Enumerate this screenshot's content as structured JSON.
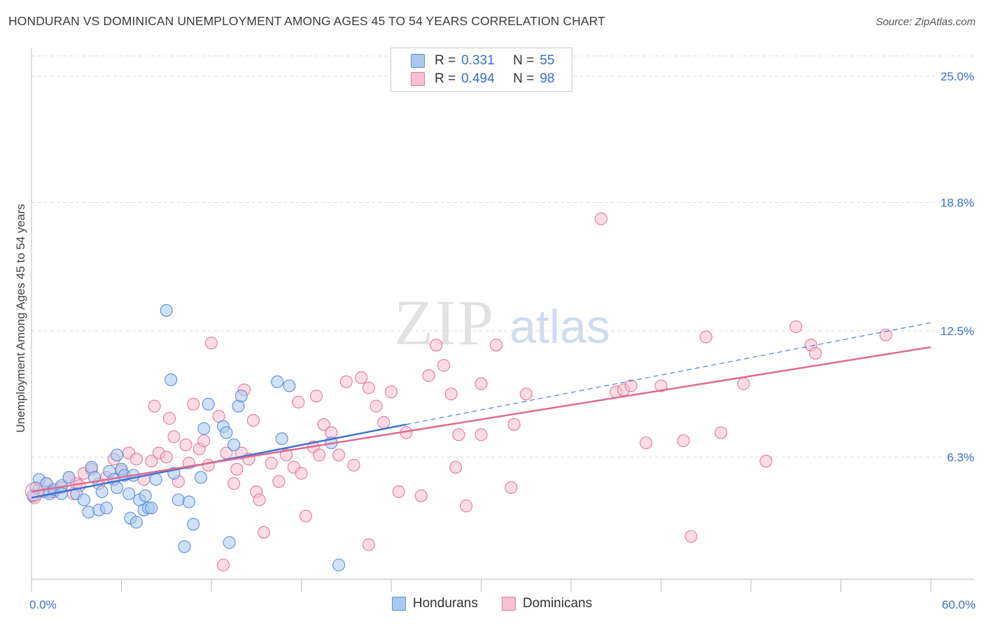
{
  "title": "HONDURAN VS DOMINICAN UNEMPLOYMENT AMONG AGES 45 TO 54 YEARS CORRELATION CHART",
  "source": "Source: ZipAtlas.com",
  "watermark": {
    "zip": "ZIP",
    "atlas": "atlas"
  },
  "legend": {
    "rows": [
      {
        "r_label": "R =",
        "r_value": "0.331",
        "n_label": "N =",
        "n_value": "55",
        "fill": "#a8c8f0",
        "stroke": "#5b8fd6"
      },
      {
        "r_label": "R =",
        "r_value": "0.494",
        "n_label": "N =",
        "n_value": "98",
        "fill": "#f8c0d0",
        "stroke": "#e07a9b"
      }
    ]
  },
  "bottom_legend": [
    {
      "label": "Hondurans",
      "fill": "#a8c8f0",
      "stroke": "#5b8fd6"
    },
    {
      "label": "Dominicans",
      "fill": "#f8c0d0",
      "stroke": "#e07a9b"
    }
  ],
  "chart_data": {
    "type": "scatter",
    "xlabel": "",
    "ylabel": "Unemployment Among Ages 45 to 54 years",
    "xlim": [
      0,
      60
    ],
    "ylim": [
      0.3,
      26.0
    ],
    "x_tick_labels": [
      {
        "value": 0,
        "label": "0.0%"
      },
      {
        "value": 60,
        "label": "60.0%"
      }
    ],
    "y_ticks": [
      {
        "value": 6.3,
        "label": "6.3%"
      },
      {
        "value": 12.5,
        "label": "12.5%"
      },
      {
        "value": 18.8,
        "label": "18.8%"
      },
      {
        "value": 25.0,
        "label": "25.0%"
      }
    ],
    "grid": true,
    "legend_position": "top-center",
    "colors": {
      "hondurans": "#5b8fd6",
      "hondurans_fill": "#a8c8f0",
      "dominicans": "#e07a9b",
      "dominicans_fill": "#f8c0d0",
      "blue_line": "#3a72d0",
      "pink_line": "#e06a92"
    },
    "series": [
      {
        "name": "Hondurans",
        "points": [
          [
            0.3,
            4.8
          ],
          [
            0.5,
            5.2
          ],
          [
            0.8,
            4.6
          ],
          [
            1.0,
            5.0
          ],
          [
            1.2,
            4.5
          ],
          [
            1.5,
            4.7
          ],
          [
            2.0,
            4.9
          ],
          [
            2.0,
            4.5
          ],
          [
            2.5,
            5.3
          ],
          [
            3.0,
            4.5
          ],
          [
            3.5,
            4.2
          ],
          [
            3.8,
            3.6
          ],
          [
            4.0,
            5.8
          ],
          [
            4.2,
            5.3
          ],
          [
            4.5,
            3.7
          ],
          [
            4.7,
            4.6
          ],
          [
            5.0,
            3.8
          ],
          [
            5.2,
            5.6
          ],
          [
            5.5,
            5.2
          ],
          [
            5.7,
            4.8
          ],
          [
            6.0,
            5.7
          ],
          [
            5.7,
            6.4
          ],
          [
            6.2,
            5.4
          ],
          [
            6.5,
            4.5
          ],
          [
            6.6,
            3.3
          ],
          [
            6.8,
            5.4
          ],
          [
            7.0,
            3.1
          ],
          [
            7.2,
            4.2
          ],
          [
            7.5,
            3.7
          ],
          [
            7.6,
            4.4
          ],
          [
            7.8,
            3.8
          ],
          [
            8.0,
            3.8
          ],
          [
            8.3,
            5.2
          ],
          [
            9.0,
            13.5
          ],
          [
            9.3,
            10.1
          ],
          [
            9.5,
            5.5
          ],
          [
            9.8,
            4.2
          ],
          [
            10.2,
            1.9
          ],
          [
            10.5,
            4.1
          ],
          [
            10.8,
            3.0
          ],
          [
            11.3,
            5.3
          ],
          [
            11.5,
            7.7
          ],
          [
            11.8,
            8.9
          ],
          [
            12.8,
            7.8
          ],
          [
            13.0,
            7.5
          ],
          [
            13.2,
            2.1
          ],
          [
            13.5,
            6.9
          ],
          [
            13.8,
            8.8
          ],
          [
            14.0,
            9.3
          ],
          [
            16.4,
            10.0
          ],
          [
            16.7,
            7.2
          ],
          [
            17.2,
            9.8
          ],
          [
            20.0,
            7.0
          ],
          [
            20.5,
            1.0
          ],
          [
            0.1,
            4.4
          ]
        ]
      },
      {
        "name": "Dominicans",
        "points": [
          [
            0.2,
            4.3
          ],
          [
            0.5,
            4.7
          ],
          [
            1.0,
            5.0
          ],
          [
            1.5,
            4.6
          ],
          [
            2.0,
            4.8
          ],
          [
            2.5,
            5.3
          ],
          [
            3.0,
            5.0
          ],
          [
            3.5,
            5.5
          ],
          [
            4.0,
            5.7
          ],
          [
            4.5,
            5.0
          ],
          [
            5.0,
            5.3
          ],
          [
            5.5,
            6.2
          ],
          [
            6.0,
            5.6
          ],
          [
            6.5,
            6.5
          ],
          [
            7.0,
            6.2
          ],
          [
            7.5,
            5.2
          ],
          [
            8.0,
            6.1
          ],
          [
            8.2,
            8.8
          ],
          [
            8.5,
            6.5
          ],
          [
            9.0,
            6.3
          ],
          [
            9.2,
            8.2
          ],
          [
            9.5,
            7.3
          ],
          [
            9.8,
            5.1
          ],
          [
            10.3,
            6.9
          ],
          [
            10.5,
            6.0
          ],
          [
            10.8,
            8.9
          ],
          [
            11.2,
            6.7
          ],
          [
            11.5,
            7.1
          ],
          [
            11.8,
            5.9
          ],
          [
            12.0,
            11.9
          ],
          [
            12.5,
            8.3
          ],
          [
            12.8,
            1.0
          ],
          [
            13.0,
            6.5
          ],
          [
            13.5,
            5.0
          ],
          [
            13.7,
            5.7
          ],
          [
            14.0,
            6.5
          ],
          [
            14.2,
            9.6
          ],
          [
            14.5,
            6.2
          ],
          [
            15.0,
            4.6
          ],
          [
            15.2,
            4.2
          ],
          [
            15.5,
            2.6
          ],
          [
            16.0,
            6.0
          ],
          [
            16.5,
            5.1
          ],
          [
            17.0,
            6.4
          ],
          [
            17.5,
            5.8
          ],
          [
            17.8,
            9.0
          ],
          [
            18.0,
            5.5
          ],
          [
            18.3,
            3.4
          ],
          [
            18.8,
            6.8
          ],
          [
            19.0,
            9.3
          ],
          [
            19.5,
            7.9
          ],
          [
            20.0,
            7.5
          ],
          [
            20.5,
            6.4
          ],
          [
            21.0,
            10.0
          ],
          [
            21.5,
            5.9
          ],
          [
            22.0,
            10.2
          ],
          [
            22.5,
            2.0
          ],
          [
            23.0,
            8.8
          ],
          [
            23.5,
            8.0
          ],
          [
            24.0,
            9.5
          ],
          [
            24.5,
            4.6
          ],
          [
            25.0,
            7.5
          ],
          [
            26.0,
            4.4
          ],
          [
            26.5,
            10.3
          ],
          [
            27.0,
            11.8
          ],
          [
            27.5,
            10.8
          ],
          [
            28.0,
            9.4
          ],
          [
            28.3,
            5.8
          ],
          [
            28.5,
            7.4
          ],
          [
            29.0,
            3.9
          ],
          [
            30.0,
            9.9
          ],
          [
            30.0,
            7.4
          ],
          [
            31.0,
            11.8
          ],
          [
            32.0,
            4.8
          ],
          [
            32.2,
            7.9
          ],
          [
            38.0,
            18.0
          ],
          [
            39.0,
            9.5
          ],
          [
            39.5,
            9.6
          ],
          [
            40.0,
            9.8
          ],
          [
            41.0,
            7.0
          ],
          [
            42.0,
            9.8
          ],
          [
            43.5,
            7.1
          ],
          [
            44.0,
            2.4
          ],
          [
            45.0,
            12.2
          ],
          [
            46.0,
            7.5
          ],
          [
            47.5,
            9.9
          ],
          [
            49.0,
            6.1
          ],
          [
            51.0,
            12.7
          ],
          [
            52.0,
            11.8
          ],
          [
            52.3,
            11.4
          ],
          [
            57.0,
            12.3
          ],
          [
            1.2,
            4.6
          ],
          [
            2.8,
            4.5
          ],
          [
            3.2,
            4.9
          ],
          [
            22.5,
            9.7
          ],
          [
            19.2,
            6.4
          ],
          [
            14.8,
            8.1
          ],
          [
            33.0,
            9.4
          ]
        ]
      }
    ],
    "trend_lines": [
      {
        "series": "Hondurans",
        "x": [
          0,
          25
        ],
        "y": [
          4.3,
          7.9
        ],
        "dashed_extension_to": [
          60,
          12.9
        ]
      },
      {
        "series": "Dominicans",
        "x": [
          0,
          60
        ],
        "y": [
          4.6,
          11.7
        ]
      }
    ]
  }
}
